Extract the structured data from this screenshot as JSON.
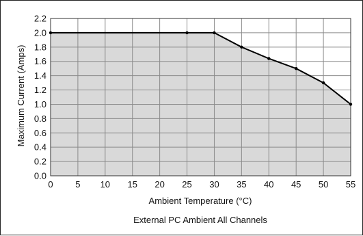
{
  "chart_data": {
    "type": "area",
    "caption": "External PC Ambient All Channels",
    "xlabel": "Ambient Temperature (°C)",
    "ylabel": "Maximum Current (Amps)",
    "xlim": [
      0,
      55
    ],
    "ylim": [
      0,
      2.2
    ],
    "x_ticks": [
      "0",
      "5",
      "10",
      "15",
      "20",
      "25",
      "30",
      "35",
      "40",
      "45",
      "50",
      "55"
    ],
    "y_ticks": [
      "0.0",
      "0.2",
      "0.4",
      "0.6",
      "0.8",
      "1.0",
      "1.2",
      "1.4",
      "1.6",
      "1.8",
      "2.0",
      "2.2"
    ],
    "grid": true,
    "fill_color": "#d9d9d9",
    "line_color": "#000000",
    "series": [
      {
        "x": [
          0,
          25,
          30,
          35,
          40,
          45,
          50,
          55
        ],
        "y": [
          2.0,
          2.0,
          2.0,
          1.8,
          1.64,
          1.5,
          1.3,
          1.0
        ]
      }
    ]
  }
}
